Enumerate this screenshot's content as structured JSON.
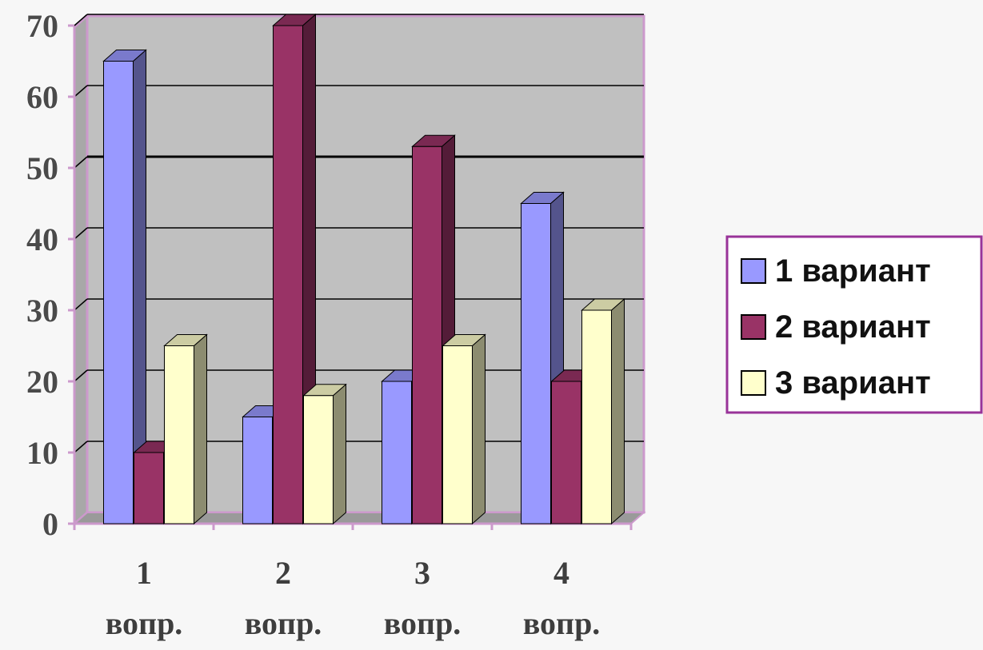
{
  "chart_data": {
    "type": "bar",
    "categories": [
      "1 вопр.",
      "2 вопр.",
      "3 вопр.",
      "4 вопр."
    ],
    "category_lines": [
      [
        "1",
        "вопр."
      ],
      [
        "2",
        "вопр."
      ],
      [
        "3",
        "вопр."
      ],
      [
        "4",
        "вопр."
      ]
    ],
    "series": [
      {
        "name": "1 вариант",
        "values": [
          65,
          15,
          20,
          45
        ],
        "color": "#9999ff"
      },
      {
        "name": "2 вариант",
        "values": [
          10,
          70,
          53,
          20
        ],
        "color": "#993366"
      },
      {
        "name": "3 вариант",
        "values": [
          25,
          18,
          25,
          30
        ],
        "color": "#ffffcc"
      }
    ],
    "ylim": [
      0,
      70
    ],
    "yticks": [
      "0",
      "10",
      "20",
      "30",
      "40",
      "50",
      "60",
      "70"
    ],
    "title": "",
    "xlabel": "",
    "ylabel": "",
    "grid": true,
    "legend_position": "right",
    "colors": {
      "plot_background": "#c0c0c0",
      "plot_border": "#cc99cc",
      "gridline": "#000000",
      "legend_border": "#993399"
    }
  }
}
